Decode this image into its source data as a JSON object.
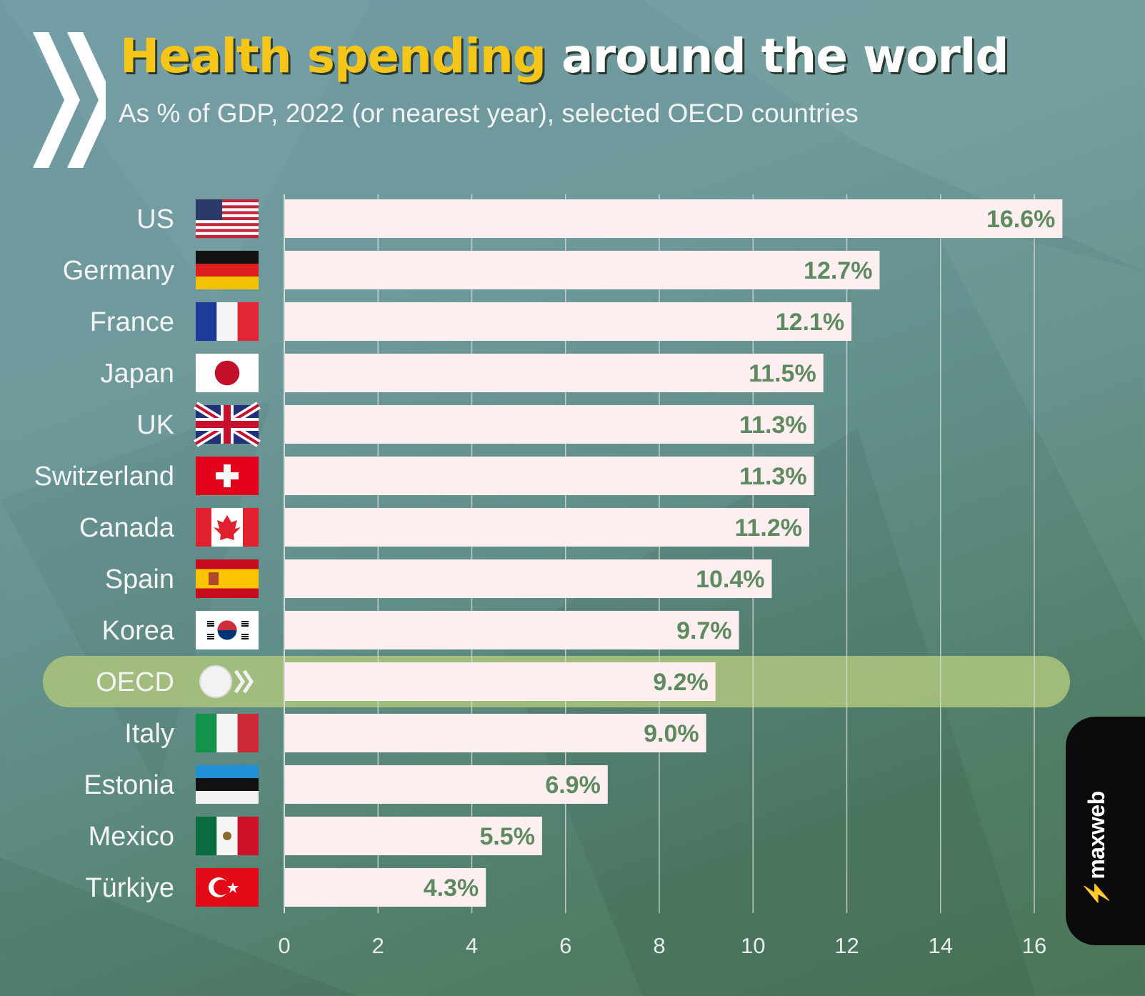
{
  "header": {
    "title_highlight": "Health spending",
    "title_rest": "around the world",
    "subtitle": "As % of GDP, 2022 (or nearest year), selected OECD countries"
  },
  "brand": {
    "bolt_icon": "lightning-icon",
    "name": "maxweb",
    "accent": "#f07b1a"
  },
  "colors": {
    "bar_fill": "#fdeef0",
    "value_text": "#5e8a5f",
    "label_text": "#f4f4f4",
    "highlight_band": "#a9c27c",
    "gridline": "#d9dcd8"
  },
  "chart_data": {
    "type": "bar",
    "orientation": "horizontal",
    "title": "Health spending around the world",
    "subtitle": "As % of GDP, 2022 (or nearest year), selected OECD countries",
    "xlabel": "",
    "ylabel": "",
    "xlim": [
      0,
      16
    ],
    "xticks": [
      0,
      2,
      4,
      6,
      8,
      10,
      12,
      14,
      16
    ],
    "grid": true,
    "highlight": "OECD",
    "categories": [
      "US",
      "Germany",
      "France",
      "Japan",
      "UK",
      "Switzerland",
      "Canada",
      "Spain",
      "Korea",
      "OECD",
      "Italy",
      "Estonia",
      "Mexico",
      "Türkiye"
    ],
    "values": [
      16.6,
      12.7,
      12.1,
      11.5,
      11.3,
      11.3,
      11.2,
      10.4,
      9.7,
      9.2,
      9.0,
      6.9,
      5.5,
      4.3
    ],
    "value_labels": [
      "16.6%",
      "12.7%",
      "12.1%",
      "11.5%",
      "11.3%",
      "11.3%",
      "11.2%",
      "10.4%",
      "9.7%",
      "9.2%",
      "9.0%",
      "6.9%",
      "5.5%",
      "4.3%"
    ],
    "icons": [
      "us-flag-icon",
      "germany-flag-icon",
      "france-flag-icon",
      "japan-flag-icon",
      "uk-flag-icon",
      "switzerland-flag-icon",
      "canada-flag-icon",
      "spain-flag-icon",
      "korea-flag-icon",
      "oecd-logo-icon",
      "italy-flag-icon",
      "estonia-flag-icon",
      "mexico-flag-icon",
      "turkiye-flag-icon"
    ]
  }
}
